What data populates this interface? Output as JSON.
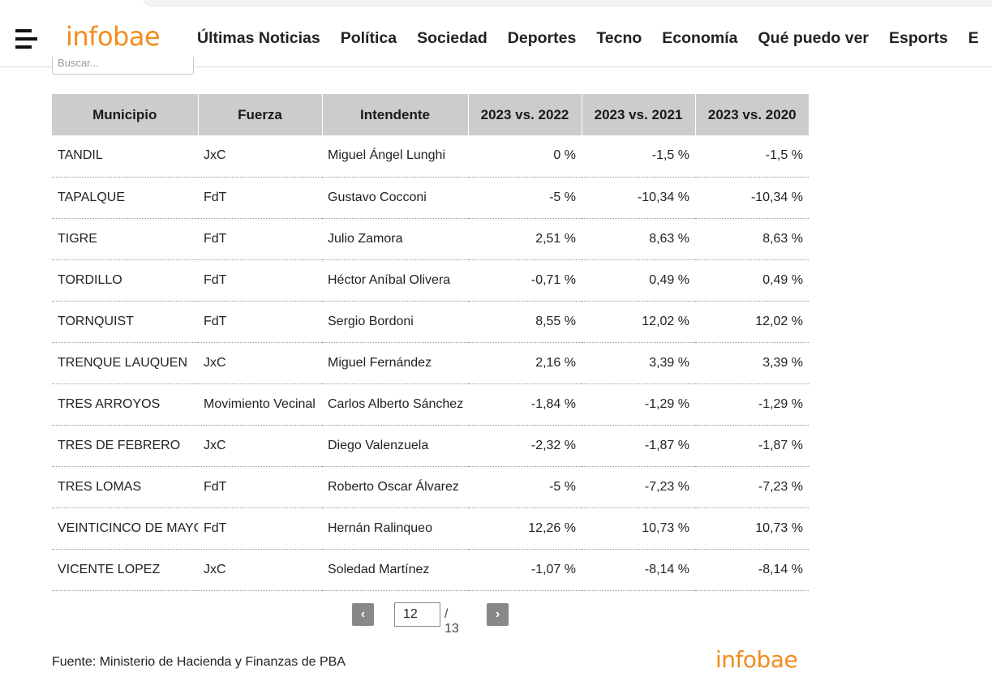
{
  "header": {
    "logo": "infobae",
    "nav": [
      "Últimas Noticias",
      "Política",
      "Sociedad",
      "Deportes",
      "Tecno",
      "Economía",
      "Qué puedo ver",
      "Esports",
      "E"
    ]
  },
  "search": {
    "placeholder": "Buscar..."
  },
  "table": {
    "headers": [
      "Municipio",
      "Fuerza",
      "Intendente",
      "2023 vs. 2022",
      "2023 vs. 2021",
      "2023 vs. 2020"
    ],
    "rows": [
      {
        "municipio": "TANDIL",
        "fuerza": "JxC",
        "intendente": "Miguel Ángel Lunghi",
        "v2022": "0 %",
        "v2021": "-1,5 %",
        "v2020": "-1,5 %"
      },
      {
        "municipio": "TAPALQUE",
        "fuerza": "FdT",
        "intendente": "Gustavo Cocconi",
        "v2022": "-5 %",
        "v2021": "-10,34 %",
        "v2020": "-10,34 %"
      },
      {
        "municipio": "TIGRE",
        "fuerza": "FdT",
        "intendente": "Julio Zamora",
        "v2022": "2,51 %",
        "v2021": "8,63 %",
        "v2020": "8,63 %"
      },
      {
        "municipio": "TORDILLO",
        "fuerza": "FdT",
        "intendente": "Héctor Aníbal Olivera",
        "v2022": "-0,71 %",
        "v2021": "0,49 %",
        "v2020": "0,49 %"
      },
      {
        "municipio": "TORNQUIST",
        "fuerza": "FdT",
        "intendente": "Sergio Bordoni",
        "v2022": "8,55 %",
        "v2021": "12,02 %",
        "v2020": "12,02 %"
      },
      {
        "municipio": "TRENQUE LAUQUEN",
        "fuerza": "JxC",
        "intendente": "Miguel Fernández",
        "v2022": "2,16 %",
        "v2021": "3,39 %",
        "v2020": "3,39 %"
      },
      {
        "municipio": "TRES ARROYOS",
        "fuerza": "Movimiento Vecinal",
        "intendente": "Carlos Alberto Sánchez",
        "v2022": "-1,84 %",
        "v2021": "-1,29 %",
        "v2020": "-1,29 %"
      },
      {
        "municipio": "TRES DE FEBRERO",
        "fuerza": "JxC",
        "intendente": "Diego Valenzuela",
        "v2022": "-2,32 %",
        "v2021": "-1,87 %",
        "v2020": "-1,87 %"
      },
      {
        "municipio": "TRES LOMAS",
        "fuerza": "FdT",
        "intendente": "Roberto Oscar Álvarez",
        "v2022": "-5 %",
        "v2021": "-7,23 %",
        "v2020": "-7,23 %"
      },
      {
        "municipio": "VEINTICINCO DE MAYO",
        "fuerza": "FdT",
        "intendente": "Hernán Ralinqueo",
        "v2022": "12,26 %",
        "v2021": "10,73 %",
        "v2020": "10,73 %"
      },
      {
        "municipio": "VICENTE LOPEZ",
        "fuerza": "JxC",
        "intendente": "Soledad Martínez",
        "v2022": "-1,07 %",
        "v2021": "-8,14 %",
        "v2020": "-8,14 %"
      }
    ]
  },
  "pagination": {
    "prev": "‹",
    "next": "›",
    "current": "12",
    "total": "/ 13"
  },
  "footer": {
    "source": "Fuente: Ministerio de Hacienda y Finanzas de PBA",
    "logo": "infobae"
  },
  "colors": {
    "brand": "#f28c1e",
    "JxC": "#c0392b",
    "FdT": "#3b6cb7",
    "Movimiento Vecinal": "#6ab04c",
    "header_bg": "#cccccc"
  }
}
